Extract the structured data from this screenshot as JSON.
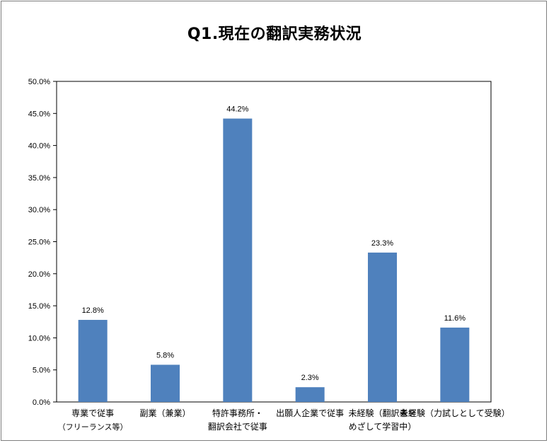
{
  "chart_data": {
    "type": "bar",
    "title": "Q1.現在の翻訳実務状況",
    "categories": [
      [
        "専業で従事",
        "（フリーランス等）"
      ],
      [
        "副業（兼業）"
      ],
      [
        "特許事務所・",
        "翻訳会社で従事"
      ],
      [
        "出願人企業で従事"
      ],
      [
        "未経験（翻訳者を",
        "めざして学習中）"
      ],
      [
        "未経験（力試しとして受験）"
      ]
    ],
    "values": [
      12.8,
      5.8,
      44.2,
      2.3,
      23.3,
      11.6
    ],
    "data_labels": [
      "12.8%",
      "5.8%",
      "44.2%",
      "2.3%",
      "23.3%",
      "11.6%"
    ],
    "ylim": [
      0,
      50
    ],
    "yticks": [
      "0.0%",
      "5.0%",
      "10.0%",
      "15.0%",
      "20.0%",
      "25.0%",
      "30.0%",
      "35.0%",
      "40.0%",
      "45.0%",
      "50.0%"
    ],
    "xlabel": "",
    "ylabel": "",
    "grid": false,
    "legend": false,
    "bar_color": "#4f81bd"
  }
}
